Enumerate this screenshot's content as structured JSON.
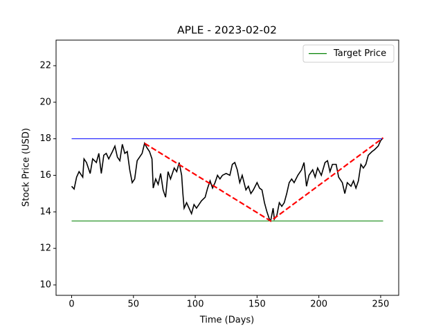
{
  "chart_data": {
    "type": "line",
    "title": "APLE - 2023-02-02",
    "xlabel": "Time (Days)",
    "ylabel": "Stock Price (USD)",
    "xlim": [
      -12.6,
      264.6
    ],
    "xticks": [
      0,
      50,
      100,
      150,
      200,
      250
    ],
    "ylim": [
      9.43,
      23.4
    ],
    "yticks": [
      10,
      12,
      14,
      16,
      18,
      20,
      22
    ],
    "legend": "upper right",
    "series": [
      {
        "color": "#000000",
        "linestyle": "solid",
        "x": [
          0,
          2,
          4,
          6,
          9,
          10,
          12,
          15,
          17,
          20,
          22,
          24,
          26,
          28,
          30,
          33,
          35,
          37,
          39,
          41,
          43,
          45,
          47,
          49,
          51,
          53,
          55,
          57,
          59,
          61,
          63,
          65,
          66,
          68,
          70,
          72,
          74,
          76,
          78,
          80,
          83,
          85,
          87,
          89,
          90,
          91,
          93,
          95,
          97,
          99,
          101,
          103,
          105,
          108,
          110,
          112,
          114,
          116,
          118,
          120,
          122,
          125,
          128,
          130,
          132,
          134,
          136,
          138,
          141,
          143,
          145,
          147,
          150,
          152,
          154,
          156,
          158,
          160,
          161,
          163,
          164,
          166,
          168,
          170,
          172,
          174,
          176,
          178,
          180,
          183,
          186,
          188,
          190,
          192,
          195,
          197,
          199,
          202,
          205,
          207,
          209,
          211,
          214,
          216,
          219,
          221,
          223,
          226,
          228,
          230,
          232,
          234,
          236,
          238,
          240,
          243,
          245,
          248,
          250,
          252
        ],
        "values": [
          15.4,
          15.25,
          15.9,
          16.2,
          15.9,
          16.9,
          16.7,
          16.1,
          16.9,
          16.7,
          17.2,
          16.1,
          17.1,
          17.2,
          16.9,
          17.3,
          17.6,
          17.0,
          16.8,
          17.7,
          17.2,
          17.3,
          16.3,
          15.6,
          15.8,
          16.8,
          17.0,
          17.2,
          17.75,
          17.5,
          17.3,
          16.9,
          15.3,
          15.8,
          15.5,
          16.1,
          15.2,
          14.8,
          16.2,
          15.8,
          16.4,
          16.2,
          16.7,
          16.0,
          15.0,
          14.2,
          14.5,
          14.2,
          13.9,
          14.4,
          14.2,
          14.4,
          14.6,
          14.8,
          15.3,
          15.7,
          15.3,
          15.6,
          16.0,
          15.8,
          16.0,
          16.1,
          16.0,
          16.6,
          16.7,
          16.3,
          15.6,
          16.0,
          15.2,
          15.4,
          15.0,
          15.2,
          15.6,
          15.3,
          15.2,
          14.5,
          14.0,
          13.6,
          13.5,
          14.2,
          13.6,
          13.8,
          14.5,
          14.3,
          14.5,
          15.0,
          15.6,
          15.8,
          15.6,
          16.0,
          16.3,
          16.7,
          15.4,
          16.0,
          16.3,
          15.9,
          16.4,
          16.0,
          16.7,
          16.8,
          16.2,
          16.6,
          16.6,
          15.9,
          15.6,
          15.0,
          15.6,
          15.4,
          15.7,
          15.3,
          15.7,
          16.6,
          16.4,
          16.6,
          17.1,
          17.3,
          17.4,
          17.6,
          17.9,
          18.05
        ]
      },
      {
        "color": "#0000ff",
        "linestyle": "solid",
        "x": [
          0,
          252
        ],
        "values": [
          18.0,
          18.0
        ]
      },
      {
        "name": "Target Price",
        "color": "#008000",
        "linestyle": "solid",
        "x": [
          0,
          252
        ],
        "values": [
          13.5,
          13.5
        ]
      },
      {
        "color": "#ff0000",
        "linestyle": "dashed",
        "x": [
          59,
          161,
          252
        ],
        "values": [
          17.75,
          13.5,
          18.05
        ]
      }
    ]
  }
}
